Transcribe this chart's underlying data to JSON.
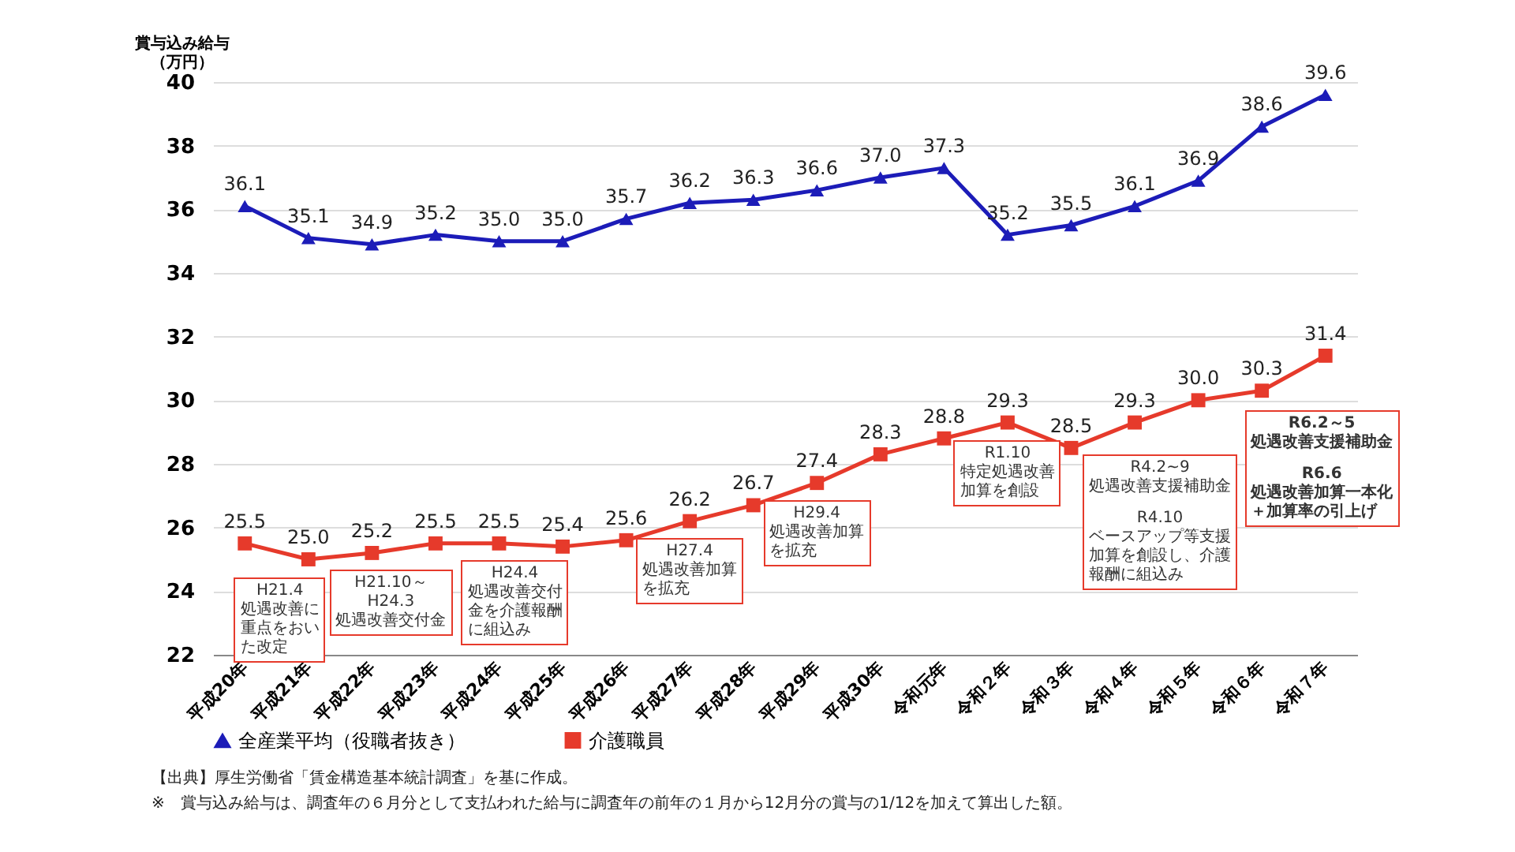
{
  "chart_data": {
    "type": "line",
    "ylabel": "賞与込み給与（万円）",
    "categories": [
      "平成20年",
      "平成21年",
      "平成22年",
      "平成23年",
      "平成24年",
      "平成25年",
      "平成26年",
      "平成27年",
      "平成28年",
      "平成29年",
      "平成30年",
      "令和元年",
      "令和２年",
      "令和３年",
      "令和４年",
      "令和５年",
      "令和６年",
      "令和７年"
    ],
    "series": [
      {
        "name": "全産業平均（役職者抜き）",
        "color": "#1c1cb8",
        "marker": "triangle",
        "values": [
          36.1,
          35.1,
          34.9,
          35.2,
          35.0,
          35.0,
          35.7,
          36.2,
          36.3,
          36.6,
          37.0,
          37.3,
          35.2,
          35.5,
          36.1,
          36.9,
          38.6,
          39.6
        ],
        "value_labels": [
          "36.1",
          "35.1",
          "34.9",
          "35.2",
          "35.0",
          "35.0",
          "35.7",
          "36.2",
          "36.3",
          "36.6",
          "37.0",
          "37.3",
          "35.2",
          "35.5",
          "36.1",
          "36.9",
          "38.6",
          "39.6"
        ]
      },
      {
        "name": "介護職員",
        "color": "#e63a2b",
        "marker": "square",
        "values": [
          25.5,
          25.0,
          25.2,
          25.5,
          25.5,
          25.4,
          25.6,
          26.2,
          26.7,
          27.4,
          28.3,
          28.8,
          29.3,
          28.5,
          29.3,
          30.0,
          30.3,
          31.4
        ],
        "value_labels": [
          "25.5",
          "25.0",
          "25.2",
          "25.5",
          "25.5",
          "25.4",
          "25.6",
          "26.2",
          "26.7",
          "27.4",
          "28.3",
          "28.8",
          "29.3",
          "28.5",
          "29.3",
          "30.0",
          "30.3",
          "31.4"
        ]
      }
    ],
    "ylim": [
      22,
      40
    ],
    "yticks": [
      22,
      24,
      26,
      28,
      30,
      32,
      34,
      36,
      38,
      40
    ],
    "grid": "y",
    "legend": "bottom",
    "annotations": [
      {
        "text": "H21.4 処遇改善に重点をおいた改定",
        "x": "平成21年",
        "y": 25.0
      },
      {
        "text": "H21.10～ H24.3 処遇改善交付金",
        "x": "平成22年",
        "y": 25.2
      },
      {
        "text": "H24.4 処遇改善交付金を介護報酬に組込み",
        "x": "平成24年",
        "y": 25.5
      },
      {
        "text": "H27.4 処遇改善加算を拡充",
        "x": "平成27年",
        "y": 26.2
      },
      {
        "text": "H29.4 処遇改善加算を拡充",
        "x": "平成29年",
        "y": 27.4
      },
      {
        "text": "R1.10 特定処遇改善加算を創設",
        "x": "令和２年",
        "y": 29.3
      },
      {
        "text": "R4.2~9 処遇改善支援補助金 R4.10 ベースアップ等支援加算を創設し、介護報酬に組込み",
        "x": "令和４年",
        "y": 29.3
      },
      {
        "text": "R6.2～5 処遇改善支援補助金 R6.6 処遇改善加算一本化＋加算率の引上げ",
        "x": "令和６年",
        "y": 30.3
      },
      "【出典】厚生労働省「賃金構造基本統計調査」を基に作成。",
      "※　賞与込み給与は、調査年の６月分として支払われた給与に調査年の前年の１月から12月分の賞与の1/12を加えて算出した額。"
    ]
  }
}
